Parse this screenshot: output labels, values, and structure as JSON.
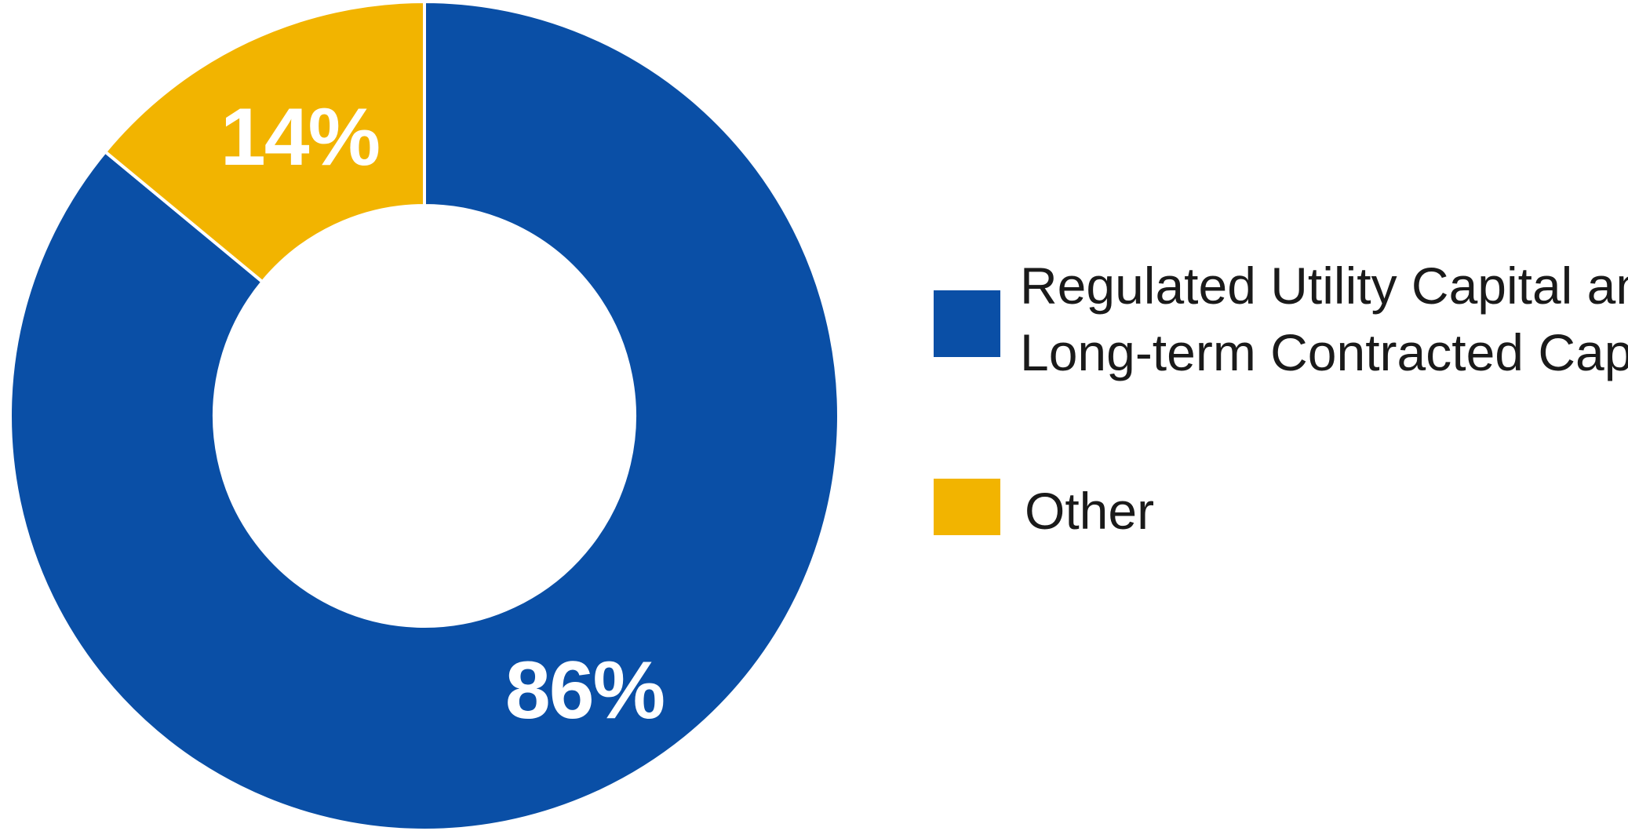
{
  "chart_data": {
    "type": "pie",
    "variant": "donut",
    "title": "",
    "categories": [
      "Regulated Utility Capital and Long-term Contracted Capital",
      "Other"
    ],
    "values": [
      86,
      14
    ],
    "unit": "%",
    "colors": [
      "#0a4fa6",
      "#f2b400"
    ],
    "data_labels": [
      "86%",
      "14%"
    ],
    "legend": {
      "placement": "right",
      "entries": [
        {
          "lines": [
            "Regulated Utility Capital and",
            "Long-term Contracted Capital"
          ],
          "color": "#0a4fa6"
        },
        {
          "lines": [
            "Other"
          ],
          "color": "#f2b400"
        }
      ]
    }
  }
}
